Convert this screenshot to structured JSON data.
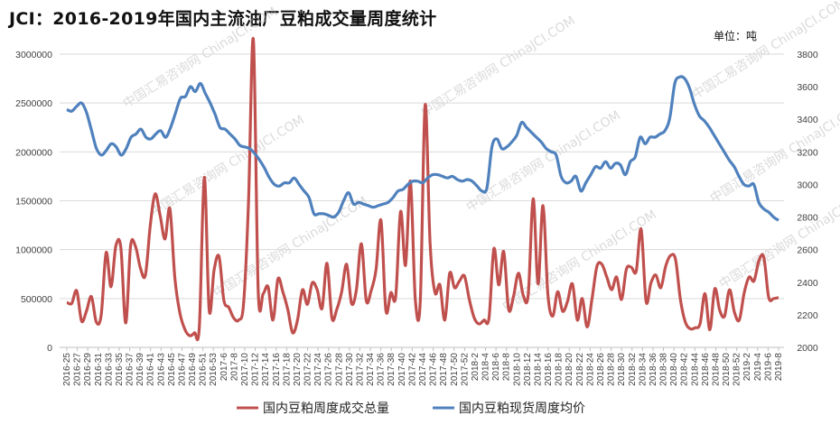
{
  "header": {
    "title": "JCI：2016-2019年国内主流油厂豆粕成交量周度统计",
    "unit": "单位：吨"
  },
  "watermark": "中国汇易咨询网 ChinaJCI.COM",
  "colors": {
    "volume": "#c0504d",
    "price": "#4f81bd",
    "grid": "#d9d9d9",
    "axis": "#bfbfbf"
  },
  "chart_data": {
    "type": "line",
    "title": "JCI：2016-2019年国内主流油厂豆粕成交量周度统计",
    "x_tick_labels": [
      "2016-25",
      "2016-27",
      "2016-29",
      "2016-31",
      "2016-33",
      "2016-35",
      "2016-37",
      "2016-39",
      "2016-41",
      "2016-43",
      "2016-45",
      "2016-47",
      "2016-49",
      "2016-51",
      "2016-53",
      "2017-6",
      "2017-8",
      "2017-10",
      "2017-12",
      "2017-14",
      "2017-16",
      "2017-18",
      "2017-20",
      "2017-22",
      "2017-24",
      "2017-26",
      "2017-28",
      "2017-30",
      "2017-32",
      "2017-34",
      "2017-36",
      "2017-38",
      "2017-40",
      "2017-42",
      "2017-44",
      "2017-46",
      "2017-48",
      "2017-50",
      "2017-52",
      "2018-2",
      "2018-4",
      "2018-6",
      "2018-8",
      "2018-10",
      "2018-12",
      "2018-14",
      "2018-16",
      "2018-18",
      "2018-20",
      "2018-22",
      "2018-24",
      "2018-26",
      "2018-28",
      "2018-30",
      "2018-32",
      "2018-34",
      "2018-36",
      "2018-38",
      "2018-40",
      "2018-42",
      "2018-44",
      "2018-46",
      "2018-48",
      "2018-50",
      "2018-52",
      "2019-2",
      "2019-4",
      "2019-6",
      "2019-8"
    ],
    "left_axis": {
      "min": 0,
      "max": 3000000,
      "step": 500000
    },
    "right_axis": {
      "min": 2000,
      "max": 3800,
      "step": 200
    },
    "grid": true,
    "legend_position": "bottom",
    "series": [
      {
        "name": "国内豆粕周度成交总量",
        "axis": "left",
        "color": "#c0504d",
        "values": [
          460000,
          450000,
          580000,
          270000,
          370000,
          520000,
          260000,
          330000,
          970000,
          620000,
          1040000,
          1020000,
          250000,
          1040000,
          1030000,
          810000,
          740000,
          1250000,
          1570000,
          1350000,
          1110000,
          1420000,
          710000,
          360000,
          190000,
          120000,
          150000,
          210000,
          1740000,
          380000,
          790000,
          930000,
          480000,
          410000,
          300000,
          280000,
          440000,
          1480000,
          3150000,
          570000,
          550000,
          620000,
          280000,
          700000,
          570000,
          390000,
          150000,
          280000,
          590000,
          440000,
          660000,
          590000,
          400000,
          860000,
          300000,
          390000,
          570000,
          850000,
          450000,
          590000,
          1060000,
          480000,
          580000,
          800000,
          1300000,
          380000,
          560000,
          520000,
          1390000,
          840000,
          1700000,
          490000,
          470000,
          2480000,
          1060000,
          560000,
          640000,
          280000,
          760000,
          610000,
          680000,
          730000,
          490000,
          300000,
          240000,
          280000,
          300000,
          1010000,
          640000,
          980000,
          390000,
          520000,
          760000,
          530000,
          540000,
          1520000,
          650000,
          1450000,
          540000,
          320000,
          570000,
          370000,
          470000,
          650000,
          280000,
          500000,
          210000,
          500000,
          830000,
          850000,
          720000,
          590000,
          720000,
          490000,
          800000,
          820000,
          780000,
          1210000,
          470000,
          660000,
          740000,
          610000,
          830000,
          940000,
          900000,
          490000,
          260000,
          190000,
          200000,
          240000,
          550000,
          180000,
          600000,
          380000,
          320000,
          590000,
          360000,
          280000,
          560000,
          720000,
          680000,
          890000,
          920000,
          510000,
          500000,
          510000
        ]
      },
      {
        "name": "国内豆粕现货周度均价",
        "axis": "right",
        "color": "#4f81bd",
        "values": [
          3460,
          3450,
          3480,
          3500,
          3440,
          3330,
          3220,
          3180,
          3210,
          3250,
          3230,
          3180,
          3220,
          3290,
          3310,
          3340,
          3290,
          3280,
          3310,
          3330,
          3290,
          3350,
          3440,
          3530,
          3540,
          3600,
          3570,
          3620,
          3560,
          3500,
          3430,
          3350,
          3340,
          3310,
          3280,
          3240,
          3230,
          3220,
          3190,
          3150,
          3100,
          3040,
          3000,
          2990,
          3010,
          3010,
          3040,
          3000,
          2960,
          2920,
          2820,
          2820,
          2820,
          2810,
          2800,
          2830,
          2900,
          2950,
          2880,
          2890,
          2880,
          2870,
          2860,
          2870,
          2880,
          2890,
          2920,
          2960,
          2970,
          3000,
          3020,
          3020,
          3010,
          3040,
          3060,
          3060,
          3050,
          3040,
          3050,
          3030,
          3020,
          3030,
          3020,
          2990,
          2960,
          2980,
          3230,
          3280,
          3220,
          3230,
          3260,
          3300,
          3380,
          3350,
          3320,
          3290,
          3260,
          3220,
          3200,
          3180,
          3050,
          3010,
          3020,
          3050,
          2960,
          3010,
          3060,
          3110,
          3100,
          3140,
          3100,
          3130,
          3120,
          3060,
          3140,
          3170,
          3290,
          3250,
          3290,
          3290,
          3310,
          3330,
          3410,
          3620,
          3660,
          3650,
          3590,
          3490,
          3420,
          3390,
          3350,
          3300,
          3250,
          3200,
          3150,
          3110,
          3050,
          3000,
          2990,
          3000,
          2890,
          2850,
          2830,
          2800,
          2780
        ]
      }
    ]
  }
}
